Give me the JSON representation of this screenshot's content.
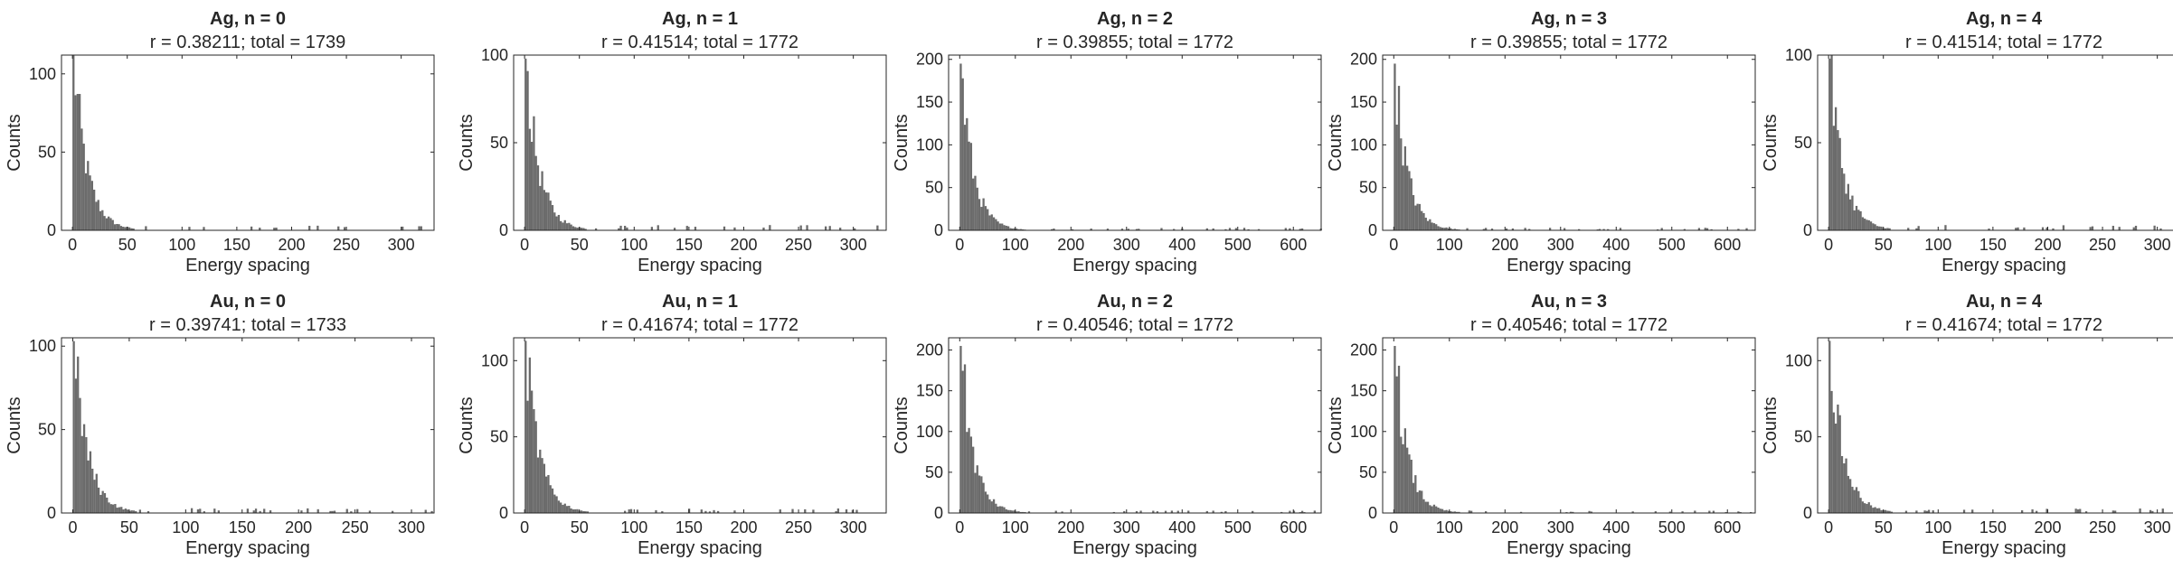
{
  "chart_data": [
    {
      "type": "bar",
      "title": "Ag, n = 0",
      "subtitle": "r = 0.38211; total = 1739",
      "xlabel": "Energy spacing",
      "ylabel": "Counts",
      "xlim": [
        -10,
        330
      ],
      "ylim": [
        0,
        112
      ],
      "xticks": [
        0,
        50,
        100,
        150,
        200,
        250,
        300
      ],
      "yticks": [
        0,
        50,
        100
      ],
      "peak": 112,
      "decay": 12
    },
    {
      "type": "bar",
      "title": "Ag, n = 1",
      "subtitle": "r = 0.41514; total = 1772",
      "xlabel": "Energy spacing",
      "ylabel": "Counts",
      "xlim": [
        -10,
        330
      ],
      "ylim": [
        0,
        100
      ],
      "xticks": [
        0,
        50,
        100,
        150,
        200,
        250,
        300
      ],
      "yticks": [
        0,
        50,
        100
      ],
      "peak": 98,
      "decay": 12
    },
    {
      "type": "bar",
      "title": "Ag, n = 2",
      "subtitle": "r = 0.39855; total = 1772",
      "xlabel": "Energy spacing",
      "ylabel": "Counts",
      "xlim": [
        -20,
        650
      ],
      "ylim": [
        0,
        205
      ],
      "xticks": [
        0,
        100,
        200,
        300,
        400,
        500,
        600
      ],
      "yticks": [
        0,
        50,
        100,
        150,
        200
      ],
      "peak": 195,
      "decay": 22
    },
    {
      "type": "bar",
      "title": "Ag, n = 3",
      "subtitle": "r = 0.39855; total = 1772",
      "xlabel": "Energy spacing",
      "ylabel": "Counts",
      "xlim": [
        -20,
        650
      ],
      "ylim": [
        0,
        205
      ],
      "xticks": [
        0,
        100,
        200,
        300,
        400,
        500,
        600
      ],
      "yticks": [
        0,
        50,
        100,
        150,
        200
      ],
      "peak": 195,
      "decay": 22
    },
    {
      "type": "bar",
      "title": "Ag, n = 4",
      "subtitle": "r = 0.41514; total = 1772",
      "xlabel": "Energy spacing",
      "ylabel": "Counts",
      "xlim": [
        -10,
        330
      ],
      "ylim": [
        0,
        100
      ],
      "xticks": [
        0,
        50,
        100,
        150,
        200,
        250,
        300
      ],
      "yticks": [
        0,
        50,
        100
      ],
      "peak": 98,
      "decay": 12
    },
    {
      "type": "bar",
      "title": "Au, n = 0",
      "subtitle": "r = 0.39741; total = 1733",
      "xlabel": "Energy spacing",
      "ylabel": "Counts",
      "xlim": [
        -10,
        320
      ],
      "ylim": [
        0,
        105
      ],
      "xticks": [
        0,
        50,
        100,
        150,
        200,
        250,
        300
      ],
      "yticks": [
        0,
        50,
        100
      ],
      "peak": 103,
      "decay": 12
    },
    {
      "type": "bar",
      "title": "Au, n = 1",
      "subtitle": "r = 0.41674; total = 1772",
      "xlabel": "Energy spacing",
      "ylabel": "Counts",
      "xlim": [
        -10,
        330
      ],
      "ylim": [
        0,
        115
      ],
      "xticks": [
        0,
        50,
        100,
        150,
        200,
        250,
        300
      ],
      "yticks": [
        0,
        50,
        100
      ],
      "peak": 113,
      "decay": 12
    },
    {
      "type": "bar",
      "title": "Au, n = 2",
      "subtitle": "r = 0.40546; total = 1772",
      "xlabel": "Energy spacing",
      "ylabel": "Counts",
      "xlim": [
        -20,
        650
      ],
      "ylim": [
        0,
        215
      ],
      "xticks": [
        0,
        100,
        200,
        300,
        400,
        500,
        600
      ],
      "yticks": [
        0,
        50,
        100,
        150,
        200
      ],
      "peak": 205,
      "decay": 22
    },
    {
      "type": "bar",
      "title": "Au, n = 3",
      "subtitle": "r = 0.40546; total = 1772",
      "xlabel": "Energy spacing",
      "ylabel": "Counts",
      "xlim": [
        -20,
        650
      ],
      "ylim": [
        0,
        215
      ],
      "xticks": [
        0,
        100,
        200,
        300,
        400,
        500,
        600
      ],
      "yticks": [
        0,
        50,
        100,
        150,
        200
      ],
      "peak": 205,
      "decay": 22
    },
    {
      "type": "bar",
      "title": "Au, n = 4",
      "subtitle": "r = 0.41674; total = 1772",
      "xlabel": "Energy spacing",
      "ylabel": "Counts",
      "xlim": [
        -10,
        330
      ],
      "ylim": [
        0,
        115
      ],
      "xticks": [
        0,
        50,
        100,
        150,
        200,
        250,
        300
      ],
      "yticks": [
        0,
        50,
        100
      ],
      "peak": 113,
      "decay": 12
    }
  ],
  "colors": {
    "bar": "#6b6b6b",
    "axis": "#262626",
    "background": "#ffffff"
  }
}
